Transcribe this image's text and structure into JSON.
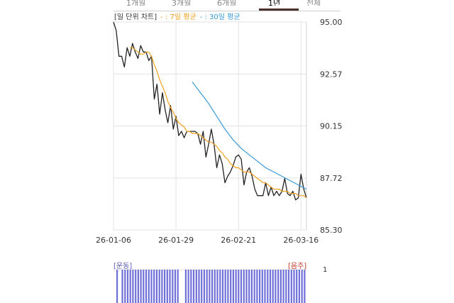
{
  "tabs": [
    {
      "label": "1개월",
      "active": false
    },
    {
      "label": "3개월",
      "active": false
    },
    {
      "label": "6개월",
      "active": false
    },
    {
      "label": "1년",
      "active": true
    },
    {
      "label": "전체",
      "active": false
    }
  ],
  "legend": {
    "title": "[일 단위 차트]",
    "ma7": "- : 7일 평균",
    "ma30": "- : 30일 평균"
  },
  "bar_labels": {
    "exercise": "[운동]",
    "drinking": "[음주]",
    "ytick": "1"
  },
  "colors": {
    "weight": "#222222",
    "ma7": "#f0a020",
    "ma30": "#3a9ad9",
    "bar": "#6f6fd8"
  },
  "chart_data": [
    {
      "type": "line",
      "title": "",
      "xlabel": "",
      "ylabel": "",
      "ylim": [
        85.3,
        95.0
      ],
      "yticks": [
        "95.00",
        "92.57",
        "90.15",
        "87.72",
        "85.30"
      ],
      "xtick_labels": [
        "26-01-06",
        "26-01-29",
        "26-02-21",
        "26-03-16"
      ],
      "xtick_days": [
        0,
        23,
        46,
        69
      ],
      "x_range_days": [
        0,
        71
      ],
      "grid": true,
      "series": [
        {
          "name": "",
          "key": "weight",
          "x_days": [
            0,
            1,
            2,
            3,
            4,
            5,
            6,
            7,
            8,
            9,
            10,
            11,
            12,
            13,
            14,
            15,
            16,
            17,
            18,
            19,
            20,
            21,
            22,
            23,
            24,
            25,
            26,
            27,
            28,
            29,
            30,
            31,
            32,
            33,
            34,
            35,
            36,
            37,
            38,
            39,
            40,
            41,
            42,
            43,
            44,
            45,
            46,
            47,
            48,
            49,
            50,
            51,
            52,
            53,
            54,
            55,
            56,
            57,
            58,
            59,
            60,
            61,
            62,
            63,
            64,
            65,
            66,
            67,
            68,
            69,
            70,
            71
          ],
          "values": [
            95.0,
            94.6,
            93.4,
            93.4,
            92.9,
            93.8,
            93.4,
            94.0,
            93.6,
            93.3,
            93.9,
            93.6,
            93.6,
            93.2,
            93.4,
            91.4,
            92.1,
            90.7,
            91.7,
            90.9,
            90.3,
            91.1,
            90.0,
            90.6,
            89.7,
            89.9,
            89.6,
            89.9,
            89.9,
            89.9,
            89.9,
            89.8,
            89.3,
            89.9,
            88.7,
            89.3,
            90.0,
            89.3,
            88.2,
            88.8,
            88.4,
            87.5,
            87.8,
            88.0,
            88.3,
            88.7,
            88.8,
            88.6,
            87.4,
            88.0,
            88.2,
            87.8,
            87.2,
            86.9,
            86.9,
            86.9,
            87.5,
            86.9,
            87.3,
            86.9,
            87.1,
            86.9,
            87.1,
            87.7,
            87.0,
            86.9,
            87.1,
            86.7,
            86.8,
            87.9,
            87.2,
            86.8
          ]
        },
        {
          "name": "",
          "key": "ma7",
          "x_days": [
            6,
            7,
            8,
            9,
            10,
            11,
            12,
            13,
            14,
            15,
            16,
            17,
            18,
            19,
            20,
            21,
            22,
            23,
            24,
            25,
            26,
            27,
            28,
            29,
            30,
            31,
            32,
            33,
            34,
            35,
            36,
            37,
            38,
            39,
            40,
            41,
            42,
            43,
            44,
            45,
            46,
            47,
            48,
            49,
            50,
            51,
            52,
            53,
            54,
            55,
            56,
            57,
            58,
            59,
            60,
            61,
            62,
            63,
            64,
            65,
            66,
            67,
            68,
            69,
            70,
            71
          ],
          "values": [
            93.8,
            93.8,
            93.7,
            93.6,
            93.5,
            93.5,
            93.6,
            93.6,
            93.4,
            93.0,
            92.7,
            92.3,
            92.0,
            91.7,
            91.3,
            91.0,
            90.8,
            90.5,
            90.3,
            90.2,
            90.1,
            89.9,
            89.9,
            89.8,
            89.8,
            89.8,
            89.7,
            89.6,
            89.5,
            89.4,
            89.4,
            89.3,
            89.2,
            89.0,
            88.9,
            88.7,
            88.6,
            88.4,
            88.3,
            88.2,
            88.2,
            88.1,
            88.0,
            88.0,
            88.0,
            87.9,
            87.8,
            87.7,
            87.6,
            87.5,
            87.5,
            87.4,
            87.3,
            87.2,
            87.2,
            87.2,
            87.1,
            87.1,
            87.1,
            87.0,
            87.0,
            87.0,
            86.9,
            86.9,
            86.9,
            86.8
          ]
        },
        {
          "name": "",
          "key": "ma30",
          "x_days": [
            29,
            32,
            35,
            38,
            41,
            44,
            47,
            50,
            53,
            56,
            59,
            62,
            65,
            68,
            71
          ],
          "values": [
            92.2,
            91.7,
            91.2,
            90.6,
            90.0,
            89.5,
            89.1,
            88.8,
            88.5,
            88.2,
            88.0,
            87.8,
            87.6,
            87.4,
            87.2
          ]
        }
      ]
    },
    {
      "type": "bar",
      "title": "",
      "xlabel": "",
      "ylabel": "",
      "ylim": [
        0,
        1
      ],
      "series": [
        {
          "name": "운동",
          "values": [
            1,
            0,
            1,
            1,
            1,
            1,
            1,
            1,
            1,
            1,
            1,
            1,
            1,
            1,
            1,
            1,
            1,
            1,
            1,
            1,
            1,
            1,
            1,
            1,
            0,
            0,
            1,
            1,
            1,
            1,
            1,
            1,
            1,
            1,
            1,
            1,
            1,
            1,
            1,
            1,
            1,
            1,
            1,
            1,
            1,
            1,
            1,
            1,
            1,
            1,
            1,
            1,
            1,
            1,
            1,
            1,
            1,
            1,
            1,
            1,
            1,
            1,
            1,
            1,
            1,
            1,
            1,
            1,
            1,
            1,
            1,
            1
          ]
        }
      ]
    }
  ]
}
